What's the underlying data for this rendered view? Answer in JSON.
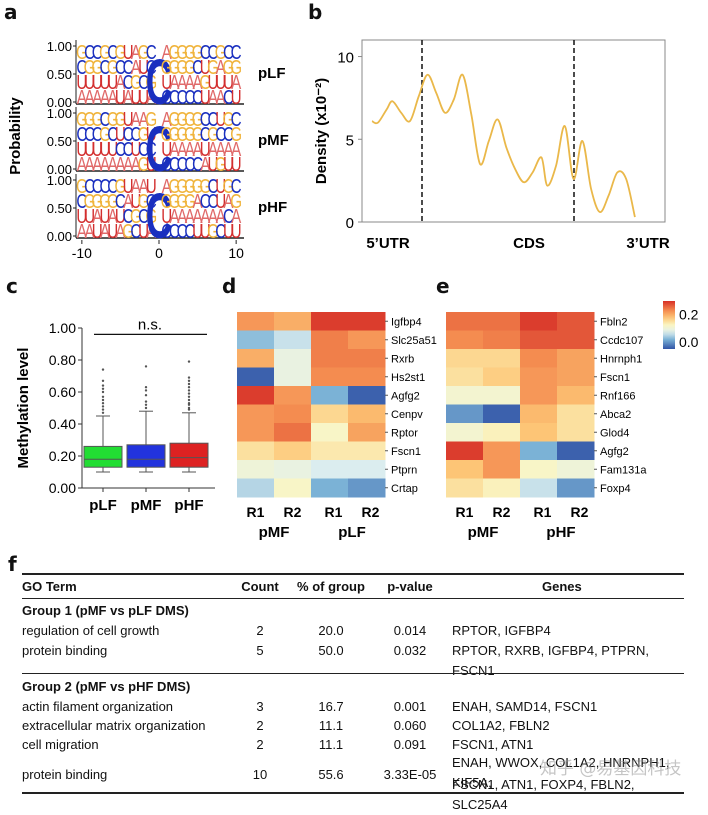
{
  "panels": {
    "a": "a",
    "b": "b",
    "c": "c",
    "d": "d",
    "e": "e",
    "f": "f"
  },
  "chart_data": [
    {
      "panel": "a",
      "type": "sequence-logo",
      "ylabel": "Probability",
      "yticks": [
        "1.00",
        "0.50",
        "0.00"
      ],
      "xticks": [
        "-10",
        "0",
        "10"
      ],
      "colors": {
        "A": "#e06a6a",
        "C": "#1a2fbf",
        "G": "#f0b43c",
        "U": "#d32f2f"
      },
      "rows": [
        {
          "name": "pLF",
          "columns": [
            [
              "G",
              "C",
              "U",
              "A"
            ],
            [
              "C",
              "G",
              "U",
              "A"
            ],
            [
              "C",
              "G",
              "U",
              "A"
            ],
            [
              "G",
              "C",
              "U",
              "A"
            ],
            [
              "C",
              "G",
              "U",
              "A"
            ],
            [
              "G",
              "C",
              "A",
              "U"
            ],
            [
              "U",
              "C",
              "C",
              "A"
            ],
            [
              "A",
              "A",
              "G",
              "U"
            ],
            [
              "G",
              "U",
              "C",
              "U"
            ],
            [
              "C",
              "C",
              "G",
              "A"
            ],
            [
              "C"
            ],
            [
              "A",
              "G",
              "U",
              "C"
            ],
            [
              "G",
              "G",
              "A",
              "C"
            ],
            [
              "G",
              "G",
              "A",
              "C"
            ],
            [
              "G",
              "G",
              "A",
              "C"
            ],
            [
              "G",
              "C",
              "A",
              "C"
            ],
            [
              "C",
              "U",
              "G",
              "U"
            ],
            [
              "C",
              "G",
              "U",
              "A"
            ],
            [
              "G",
              "A",
              "U",
              "A"
            ],
            [
              "C",
              "G",
              "U",
              "C"
            ],
            [
              "C",
              "G",
              "A",
              "U"
            ]
          ]
        },
        {
          "name": "pMF",
          "columns": [
            [
              "G",
              "C",
              "U",
              "A"
            ],
            [
              "G",
              "C",
              "U",
              "A"
            ],
            [
              "G",
              "C",
              "U",
              "A"
            ],
            [
              "C",
              "G",
              "U",
              "A"
            ],
            [
              "G",
              "C",
              "U",
              "A"
            ],
            [
              "G",
              "U",
              "C",
              "A"
            ],
            [
              "U",
              "C",
              "C",
              "A"
            ],
            [
              "A",
              "C",
              "U",
              "A"
            ],
            [
              "A",
              "G",
              "C",
              "G"
            ],
            [
              "G",
              "U",
              "C",
              "U"
            ],
            [
              "C"
            ],
            [
              "A",
              "G",
              "U",
              "C"
            ],
            [
              "G",
              "G",
              "A",
              "C"
            ],
            [
              "G",
              "G",
              "A",
              "C"
            ],
            [
              "G",
              "G",
              "A",
              "C"
            ],
            [
              "G",
              "G",
              "A",
              "C"
            ],
            [
              "C",
              "C",
              "U",
              "A"
            ],
            [
              "C",
              "G",
              "A",
              "U"
            ],
            [
              "U",
              "C",
              "A",
              "G"
            ],
            [
              "G",
              "C",
              "A",
              "U"
            ],
            [
              "C",
              "G",
              "A",
              "U"
            ]
          ]
        },
        {
          "name": "pHF",
          "columns": [
            [
              "G",
              "C",
              "U",
              "A"
            ],
            [
              "C",
              "G",
              "U",
              "A"
            ],
            [
              "C",
              "G",
              "A",
              "U"
            ],
            [
              "C",
              "G",
              "U",
              "A"
            ],
            [
              "C",
              "G",
              "A",
              "U"
            ],
            [
              "G",
              "C",
              "U",
              "A"
            ],
            [
              "U",
              "A",
              "C",
              "G"
            ],
            [
              "A",
              "U",
              "G",
              "C"
            ],
            [
              "A",
              "G",
              "C",
              "U"
            ],
            [
              "U",
              "C",
              "G",
              "A"
            ],
            [
              "C"
            ],
            [
              "A",
              "G",
              "U",
              "C"
            ],
            [
              "G",
              "G",
              "A",
              "C"
            ],
            [
              "G",
              "G",
              "A",
              "C"
            ],
            [
              "G",
              "G",
              "A",
              "C"
            ],
            [
              "G",
              "A",
              "A",
              "U"
            ],
            [
              "G",
              "C",
              "A",
              "U"
            ],
            [
              "C",
              "C",
              "A",
              "G"
            ],
            [
              "U",
              "U",
              "A",
              "C"
            ],
            [
              "G",
              "A",
              "C",
              "U"
            ],
            [
              "C",
              "G",
              "A",
              "U"
            ]
          ]
        }
      ]
    },
    {
      "panel": "b",
      "type": "line",
      "ylabel": "Density (x10⁻²)",
      "ylim": [
        0,
        11
      ],
      "yticks": [
        "0",
        "5",
        "10"
      ],
      "regions": [
        "5’UTR",
        "CDS",
        "3’UTR"
      ],
      "region_boundaries": [
        0.2,
        0.7
      ],
      "color": "#eab84a",
      "x": [
        0.0,
        0.02,
        0.05,
        0.07,
        0.1,
        0.13,
        0.16,
        0.19,
        0.22,
        0.25,
        0.28,
        0.31,
        0.34,
        0.37,
        0.4,
        0.43,
        0.46,
        0.49,
        0.52,
        0.55,
        0.58,
        0.6,
        0.63,
        0.66,
        0.69,
        0.72,
        0.75,
        0.78,
        0.81,
        0.84,
        0.87,
        0.9,
        0.93,
        0.96
      ],
      "values": [
        6.1,
        6.0,
        6.8,
        7.3,
        6.6,
        6.1,
        7.6,
        8.9,
        7.8,
        6.6,
        7.4,
        8.9,
        6.5,
        3.5,
        4.9,
        6.2,
        4.5,
        3.2,
        2.4,
        3.0,
        3.9,
        2.2,
        3.4,
        5.8,
        2.6,
        4.9,
        2.0,
        0.6,
        1.6,
        3.0,
        2.6,
        0.3,
        null,
        null
      ]
    },
    {
      "panel": "c",
      "type": "box",
      "ylabel": "Methylation level",
      "ylim": [
        0,
        1
      ],
      "yticks": [
        "0.00",
        "0.20",
        "0.40",
        "0.60",
        "0.80",
        "1.00"
      ],
      "annotation": "n.s.",
      "categories": [
        "pLF",
        "pMF",
        "pHF"
      ],
      "colors": [
        "#22dd33",
        "#2233dd",
        "#dd2222"
      ],
      "boxes": [
        {
          "whislo": 0.1,
          "q1": 0.13,
          "med": 0.18,
          "q3": 0.26,
          "whishi": 0.45,
          "fliers": [
            0.47,
            0.49,
            0.51,
            0.53,
            0.55,
            0.57,
            0.6,
            0.62,
            0.64,
            0.67,
            0.74
          ]
        },
        {
          "whislo": 0.1,
          "q1": 0.13,
          "med": 0.18,
          "q3": 0.27,
          "whishi": 0.48,
          "fliers": [
            0.5,
            0.52,
            0.54,
            0.58,
            0.61,
            0.63,
            0.76
          ]
        },
        {
          "whislo": 0.1,
          "q1": 0.13,
          "med": 0.19,
          "q3": 0.28,
          "whishi": 0.47,
          "fliers": [
            0.49,
            0.5,
            0.52,
            0.53,
            0.55,
            0.57,
            0.59,
            0.61,
            0.63,
            0.65,
            0.67,
            0.69,
            0.79
          ]
        }
      ]
    },
    {
      "panel": "d",
      "type": "heatmap",
      "rows": [
        "Igfbp4",
        "Slc25a51",
        "Rxrb",
        "Hs2st1",
        "Agfg2",
        "Cenpv",
        "Rptor",
        "Fscn1",
        "Ptprn",
        "Crtap"
      ],
      "columns": [
        "R1",
        "R2",
        "R1",
        "R2"
      ],
      "groups": [
        "pMF",
        "pLF"
      ],
      "values": [
        [
          0.22,
          0.2,
          0.29,
          0.29
        ],
        [
          0.03,
          0.06,
          0.24,
          0.22
        ],
        [
          0.2,
          0.09,
          0.24,
          0.24
        ],
        [
          -0.04,
          0.09,
          0.23,
          0.23
        ],
        [
          0.29,
          0.22,
          0.02,
          -0.04
        ],
        [
          0.22,
          0.23,
          0.16,
          0.19
        ],
        [
          0.22,
          0.25,
          0.12,
          0.21
        ],
        [
          0.15,
          0.17,
          0.14,
          0.14
        ],
        [
          0.1,
          0.09,
          0.07,
          0.07
        ],
        [
          0.05,
          0.12,
          0.02,
          0.0
        ]
      ],
      "scale": {
        "min": -0.05,
        "max": 0.3,
        "ticks": [
          "0.2",
          "0.0"
        ]
      }
    },
    {
      "panel": "e",
      "type": "heatmap",
      "rows": [
        "Fbln2",
        "Ccdc107",
        "Hnrnph1",
        "Fscn1",
        "Rnf166",
        "Abca2",
        "Glod4",
        "Agfg2",
        "Fam131a",
        "Foxp4"
      ],
      "columns": [
        "R1",
        "R2",
        "R1",
        "R2"
      ],
      "groups": [
        "pMF",
        "pHF"
      ],
      "values": [
        [
          0.25,
          0.25,
          0.29,
          0.27
        ],
        [
          0.23,
          0.24,
          0.27,
          0.27
        ],
        [
          0.16,
          0.16,
          0.23,
          0.21
        ],
        [
          0.15,
          0.17,
          0.22,
          0.21
        ],
        [
          0.11,
          0.11,
          0.22,
          0.19
        ],
        [
          0.0,
          -0.04,
          0.19,
          0.15
        ],
        [
          0.11,
          0.13,
          0.18,
          0.15
        ],
        [
          0.29,
          0.22,
          0.02,
          -0.04
        ],
        [
          0.18,
          0.22,
          0.12,
          0.1
        ],
        [
          0.15,
          0.13,
          0.06,
          0.0
        ]
      ],
      "scale": {
        "min": -0.05,
        "max": 0.3,
        "ticks": [
          "0.2",
          "0.0"
        ]
      }
    }
  ],
  "table": {
    "headers": [
      "GO Term",
      "Count",
      "% of group",
      "p-value",
      "Genes"
    ],
    "groups": [
      {
        "title": "Group 1 (pMF vs pLF DMS)",
        "rows": [
          {
            "term": "regulation of cell growth",
            "count": "2",
            "pct": "20.0",
            "p": "0.014",
            "genes": "RPTOR, IGFBP4"
          },
          {
            "term": "protein binding",
            "count": "5",
            "pct": "50.0",
            "p": "0.032",
            "genes": "RPTOR, RXRB, IGFBP4, PTPRN, FSCN1"
          }
        ]
      },
      {
        "title": "Group 2 (pMF vs pHF DMS)",
        "rows": [
          {
            "term": "actin filament organization",
            "count": "3",
            "pct": "16.7",
            "p": "0.001",
            "genes": "ENAH, SAMD14, FSCN1"
          },
          {
            "term": "extracellular matrix organization",
            "count": "2",
            "pct": "11.1",
            "p": "0.060",
            "genes": "COL1A2, FBLN2"
          },
          {
            "term": "cell migration",
            "count": "2",
            "pct": "11.1",
            "p": "0.091",
            "genes": "FSCN1, ATN1"
          },
          {
            "term": "protein binding",
            "count": "10",
            "pct": "55.6",
            "p": "3.33E-05",
            "genes": "ENAH, WWOX, COL1A2, HNRNPH1, KIF5A,",
            "genes2": "FSCN1, ATN1, FOXP4, FBLN2, SLC25A4"
          }
        ]
      }
    ]
  },
  "watermark": "知乎 @易基因科技"
}
